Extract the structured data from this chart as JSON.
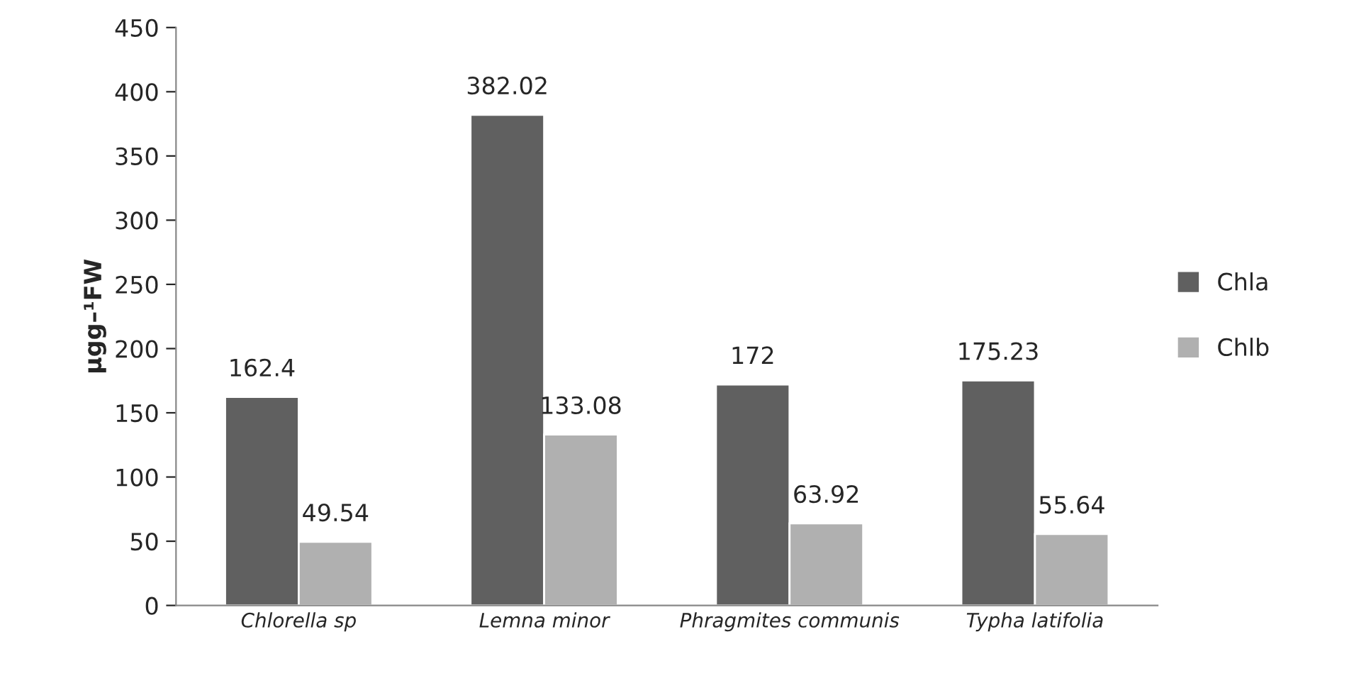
{
  "chart_data": {
    "type": "bar",
    "ylabel": "µgg–¹FW",
    "categories": [
      "Chlorella sp",
      "Lemna minor",
      "Phragmites communis",
      "Typha latifolia"
    ],
    "series": [
      {
        "name": "Chla",
        "color": "#606060",
        "values": [
          162.4,
          382.02,
          172,
          175.23
        ]
      },
      {
        "name": "Chlb",
        "color": "#b0b0b0",
        "values": [
          49.54,
          133.08,
          63.92,
          55.64
        ]
      }
    ],
    "ylim": [
      0,
      450
    ],
    "yticks": [
      0,
      50,
      100,
      150,
      200,
      250,
      300,
      350,
      400,
      450
    ],
    "data_labels": true,
    "grid": false,
    "legend": "right"
  }
}
